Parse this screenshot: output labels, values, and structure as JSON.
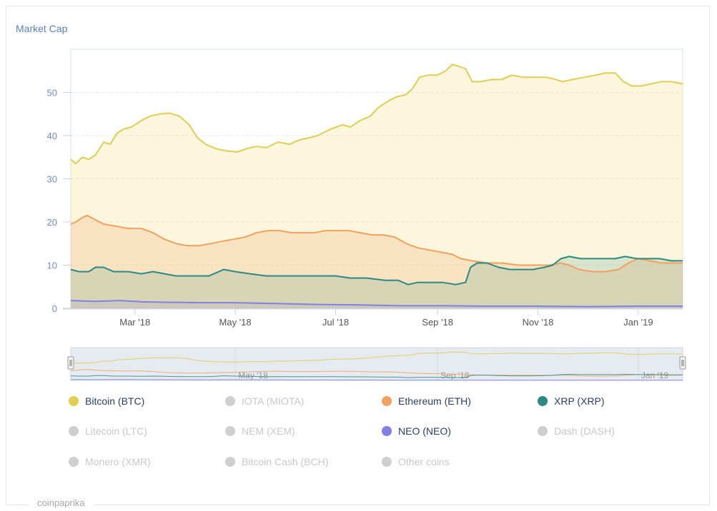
{
  "chart_title": "Market Cap",
  "credit": "coinpaprika",
  "colors": {
    "btc": "#e0cd52",
    "eth": "#f1a15e",
    "xrp": "#2a8a82",
    "neo": "#8080e6",
    "disabled": "#cfcfcf"
  },
  "legend": [
    {
      "label": "Bitcoin (BTC)",
      "color": "#e0cd52",
      "enabled": true
    },
    {
      "label": "IOTA (MIOTA)",
      "color": "#cfcfcf",
      "enabled": false
    },
    {
      "label": "Ethereum (ETH)",
      "color": "#f1a15e",
      "enabled": true
    },
    {
      "label": "XRP (XRP)",
      "color": "#2a8a82",
      "enabled": true
    },
    {
      "label": "Litecoin (LTC)",
      "color": "#cfcfcf",
      "enabled": false
    },
    {
      "label": "NEM (XEM)",
      "color": "#cfcfcf",
      "enabled": false
    },
    {
      "label": "NEO (NEO)",
      "color": "#8080e6",
      "enabled": true
    },
    {
      "label": "Dash (DASH)",
      "color": "#cfcfcf",
      "enabled": false
    },
    {
      "label": "Monero (XMR)",
      "color": "#cfcfcf",
      "enabled": false
    },
    {
      "label": "Bitcoin Cash (BCH)",
      "color": "#cfcfcf",
      "enabled": false
    },
    {
      "label": "Other coins",
      "color": "#cfcfcf",
      "enabled": false
    }
  ],
  "chart_data": {
    "type": "area",
    "title": "Market Cap",
    "x_range": [
      "2018-01-21",
      "2019-01-28"
    ],
    "ylim": [
      0,
      60
    ],
    "grid": true,
    "y_ticks": [
      0,
      10,
      20,
      30,
      40,
      50
    ],
    "x_ticks": [
      {
        "date": "2018-03-01",
        "label": "Mar '18"
      },
      {
        "date": "2018-05-01",
        "label": "May '18"
      },
      {
        "date": "2018-07-01",
        "label": "Jul '18"
      },
      {
        "date": "2018-09-01",
        "label": "Sep '18"
      },
      {
        "date": "2018-11-01",
        "label": "Nov '18"
      },
      {
        "date": "2019-01-01",
        "label": "Jan '19"
      }
    ],
    "navigator_ticks": [
      {
        "date": "2018-05-01",
        "label": "May '18"
      },
      {
        "date": "2018-09-01",
        "label": "Sep '18"
      },
      {
        "date": "2019-01-01",
        "label": "Jan '19"
      }
    ],
    "series": [
      {
        "name": "Bitcoin (BTC)",
        "color": "#e0cd52",
        "points": [
          [
            "2018-01-21",
            34.5
          ],
          [
            "2018-01-24",
            33.5
          ],
          [
            "2018-01-28",
            35.0
          ],
          [
            "2018-02-01",
            34.5
          ],
          [
            "2018-02-05",
            35.5
          ],
          [
            "2018-02-10",
            38.5
          ],
          [
            "2018-02-14",
            38.0
          ],
          [
            "2018-02-18",
            40.5
          ],
          [
            "2018-02-22",
            41.5
          ],
          [
            "2018-02-27",
            42.0
          ],
          [
            "2018-03-05",
            43.5
          ],
          [
            "2018-03-10",
            44.5
          ],
          [
            "2018-03-16",
            45.0
          ],
          [
            "2018-03-22",
            45.2
          ],
          [
            "2018-03-28",
            44.5
          ],
          [
            "2018-04-03",
            42.5
          ],
          [
            "2018-04-08",
            39.5
          ],
          [
            "2018-04-13",
            38.0
          ],
          [
            "2018-04-19",
            37.0
          ],
          [
            "2018-04-25",
            36.5
          ],
          [
            "2018-05-02",
            36.2
          ],
          [
            "2018-05-08",
            37.0
          ],
          [
            "2018-05-14",
            37.5
          ],
          [
            "2018-05-20",
            37.2
          ],
          [
            "2018-05-27",
            38.5
          ],
          [
            "2018-06-03",
            38.0
          ],
          [
            "2018-06-09",
            39.0
          ],
          [
            "2018-06-15",
            39.5
          ],
          [
            "2018-06-20",
            40.0
          ],
          [
            "2018-06-28",
            41.5
          ],
          [
            "2018-07-05",
            42.5
          ],
          [
            "2018-07-10",
            42.0
          ],
          [
            "2018-07-16",
            43.5
          ],
          [
            "2018-07-22",
            44.5
          ],
          [
            "2018-07-27",
            46.5
          ],
          [
            "2018-08-02",
            48.0
          ],
          [
            "2018-08-07",
            49.0
          ],
          [
            "2018-08-13",
            49.5
          ],
          [
            "2018-08-17",
            51.0
          ],
          [
            "2018-08-21",
            53.5
          ],
          [
            "2018-08-26",
            54.0
          ],
          [
            "2018-09-01",
            54.0
          ],
          [
            "2018-09-06",
            55.0
          ],
          [
            "2018-09-10",
            56.5
          ],
          [
            "2018-09-14",
            56.0
          ],
          [
            "2018-09-18",
            55.5
          ],
          [
            "2018-09-22",
            52.5
          ],
          [
            "2018-09-27",
            52.5
          ],
          [
            "2018-10-04",
            53.0
          ],
          [
            "2018-10-10",
            53.0
          ],
          [
            "2018-10-16",
            54.0
          ],
          [
            "2018-10-23",
            53.5
          ],
          [
            "2018-10-30",
            53.5
          ],
          [
            "2018-11-06",
            53.5
          ],
          [
            "2018-11-12",
            53.0
          ],
          [
            "2018-11-16",
            52.5
          ],
          [
            "2018-11-22",
            53.0
          ],
          [
            "2018-11-29",
            53.5
          ],
          [
            "2018-12-06",
            54.0
          ],
          [
            "2018-12-12",
            54.5
          ],
          [
            "2018-12-18",
            54.5
          ],
          [
            "2018-12-23",
            52.5
          ],
          [
            "2018-12-28",
            51.5
          ],
          [
            "2019-01-03",
            51.5
          ],
          [
            "2019-01-09",
            52.0
          ],
          [
            "2019-01-15",
            52.5
          ],
          [
            "2019-01-21",
            52.5
          ],
          [
            "2019-01-28",
            52.0
          ]
        ]
      },
      {
        "name": "Ethereum (ETH)",
        "color": "#f1a15e",
        "points": [
          [
            "2018-01-21",
            19.5
          ],
          [
            "2018-01-24",
            20.0
          ],
          [
            "2018-01-28",
            21.0
          ],
          [
            "2018-01-31",
            21.5
          ],
          [
            "2018-02-05",
            20.5
          ],
          [
            "2018-02-10",
            19.5
          ],
          [
            "2018-02-18",
            19.0
          ],
          [
            "2018-02-25",
            18.5
          ],
          [
            "2018-03-05",
            18.5
          ],
          [
            "2018-03-12",
            17.5
          ],
          [
            "2018-03-19",
            16.0
          ],
          [
            "2018-03-26",
            15.0
          ],
          [
            "2018-04-02",
            14.5
          ],
          [
            "2018-04-09",
            14.5
          ],
          [
            "2018-04-16",
            15.0
          ],
          [
            "2018-04-23",
            15.5
          ],
          [
            "2018-04-30",
            16.0
          ],
          [
            "2018-05-07",
            16.5
          ],
          [
            "2018-05-14",
            17.5
          ],
          [
            "2018-05-21",
            18.0
          ],
          [
            "2018-05-28",
            18.0
          ],
          [
            "2018-06-04",
            17.5
          ],
          [
            "2018-06-11",
            17.5
          ],
          [
            "2018-06-18",
            17.5
          ],
          [
            "2018-06-25",
            18.0
          ],
          [
            "2018-07-02",
            18.0
          ],
          [
            "2018-07-09",
            18.0
          ],
          [
            "2018-07-16",
            17.5
          ],
          [
            "2018-07-23",
            17.0
          ],
          [
            "2018-07-30",
            17.0
          ],
          [
            "2018-08-06",
            16.5
          ],
          [
            "2018-08-13",
            15.0
          ],
          [
            "2018-08-20",
            14.0
          ],
          [
            "2018-08-27",
            13.5
          ],
          [
            "2018-09-03",
            13.0
          ],
          [
            "2018-09-10",
            12.5
          ],
          [
            "2018-09-15",
            11.5
          ],
          [
            "2018-09-22",
            11.0
          ],
          [
            "2018-10-01",
            10.5
          ],
          [
            "2018-10-10",
            10.5
          ],
          [
            "2018-10-20",
            10.0
          ],
          [
            "2018-10-30",
            10.0
          ],
          [
            "2018-11-08",
            10.0
          ],
          [
            "2018-11-15",
            10.5
          ],
          [
            "2018-11-20",
            10.0
          ],
          [
            "2018-11-26",
            9.0
          ],
          [
            "2018-12-04",
            8.5
          ],
          [
            "2018-12-12",
            8.5
          ],
          [
            "2018-12-20",
            9.0
          ],
          [
            "2018-12-26",
            10.5
          ],
          [
            "2019-01-01",
            11.5
          ],
          [
            "2019-01-08",
            11.0
          ],
          [
            "2019-01-15",
            10.5
          ],
          [
            "2019-01-22",
            10.5
          ],
          [
            "2019-01-28",
            10.5
          ]
        ]
      },
      {
        "name": "XRP (XRP)",
        "color": "#2a8a82",
        "points": [
          [
            "2018-01-21",
            9.0
          ],
          [
            "2018-01-26",
            8.5
          ],
          [
            "2018-02-01",
            8.5
          ],
          [
            "2018-02-05",
            9.5
          ],
          [
            "2018-02-10",
            9.5
          ],
          [
            "2018-02-16",
            8.5
          ],
          [
            "2018-02-25",
            8.5
          ],
          [
            "2018-03-05",
            8.0
          ],
          [
            "2018-03-12",
            8.5
          ],
          [
            "2018-03-19",
            8.0
          ],
          [
            "2018-03-26",
            7.5
          ],
          [
            "2018-04-05",
            7.5
          ],
          [
            "2018-04-15",
            7.5
          ],
          [
            "2018-04-24",
            9.0
          ],
          [
            "2018-05-01",
            8.5
          ],
          [
            "2018-05-10",
            8.0
          ],
          [
            "2018-05-20",
            7.5
          ],
          [
            "2018-06-01",
            7.5
          ],
          [
            "2018-06-10",
            7.5
          ],
          [
            "2018-06-20",
            7.5
          ],
          [
            "2018-07-01",
            7.5
          ],
          [
            "2018-07-10",
            7.0
          ],
          [
            "2018-07-20",
            7.0
          ],
          [
            "2018-07-31",
            6.5
          ],
          [
            "2018-08-08",
            6.5
          ],
          [
            "2018-08-14",
            5.5
          ],
          [
            "2018-08-20",
            6.0
          ],
          [
            "2018-08-27",
            6.0
          ],
          [
            "2018-09-04",
            6.0
          ],
          [
            "2018-09-12",
            5.5
          ],
          [
            "2018-09-18",
            6.0
          ],
          [
            "2018-09-21",
            9.5
          ],
          [
            "2018-09-25",
            10.5
          ],
          [
            "2018-10-01",
            10.5
          ],
          [
            "2018-10-08",
            9.5
          ],
          [
            "2018-10-15",
            9.0
          ],
          [
            "2018-10-22",
            9.0
          ],
          [
            "2018-10-29",
            9.0
          ],
          [
            "2018-11-05",
            9.5
          ],
          [
            "2018-11-10",
            10.0
          ],
          [
            "2018-11-15",
            11.5
          ],
          [
            "2018-11-20",
            12.0
          ],
          [
            "2018-11-27",
            11.5
          ],
          [
            "2018-12-04",
            11.5
          ],
          [
            "2018-12-11",
            11.5
          ],
          [
            "2018-12-18",
            11.5
          ],
          [
            "2018-12-24",
            12.0
          ],
          [
            "2018-12-31",
            11.5
          ],
          [
            "2019-01-07",
            11.5
          ],
          [
            "2019-01-14",
            11.5
          ],
          [
            "2019-01-21",
            11.0
          ],
          [
            "2019-01-28",
            11.0
          ]
        ]
      },
      {
        "name": "NEO (NEO)",
        "color": "#8080e6",
        "points": [
          [
            "2018-01-21",
            1.8
          ],
          [
            "2018-02-05",
            1.6
          ],
          [
            "2018-02-20",
            1.8
          ],
          [
            "2018-03-05",
            1.5
          ],
          [
            "2018-03-20",
            1.4
          ],
          [
            "2018-04-10",
            1.3
          ],
          [
            "2018-05-01",
            1.3
          ],
          [
            "2018-05-25",
            1.1
          ],
          [
            "2018-06-20",
            0.9
          ],
          [
            "2018-07-15",
            0.8
          ],
          [
            "2018-08-10",
            0.6
          ],
          [
            "2018-09-05",
            0.6
          ],
          [
            "2018-10-01",
            0.5
          ],
          [
            "2018-11-01",
            0.5
          ],
          [
            "2018-12-01",
            0.4
          ],
          [
            "2019-01-01",
            0.5
          ],
          [
            "2019-01-28",
            0.5
          ]
        ]
      }
    ]
  }
}
